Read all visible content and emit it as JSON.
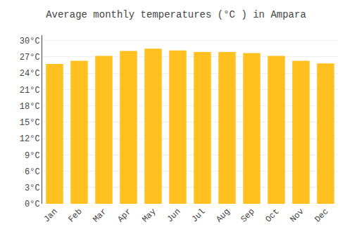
{
  "chart_data": {
    "type": "bar",
    "title": "Average monthly temperatures (°C ) in Ampara",
    "categories": [
      "Jan",
      "Feb",
      "Mar",
      "Apr",
      "May",
      "Jun",
      "Jul",
      "Aug",
      "Sep",
      "Oct",
      "Nov",
      "Dec"
    ],
    "values": [
      25.7,
      26.3,
      27.2,
      28.1,
      28.5,
      28.2,
      27.9,
      27.9,
      27.7,
      27.2,
      26.3,
      25.8
    ],
    "color": "#FFC020",
    "ylim": [
      0,
      31
    ],
    "yticks": [
      {
        "value": 0,
        "label": "0°C"
      },
      {
        "value": 3,
        "label": "3°C"
      },
      {
        "value": 6,
        "label": "6°C"
      },
      {
        "value": 9,
        "label": "9°C"
      },
      {
        "value": 12,
        "label": "12°C"
      },
      {
        "value": 15,
        "label": "15°C"
      },
      {
        "value": 18,
        "label": "18°C"
      },
      {
        "value": 21,
        "label": "21°C"
      },
      {
        "value": 24,
        "label": "24°C"
      },
      {
        "value": 27,
        "label": "27°C"
      },
      {
        "value": 30,
        "label": "30°C"
      }
    ],
    "grid": true
  }
}
